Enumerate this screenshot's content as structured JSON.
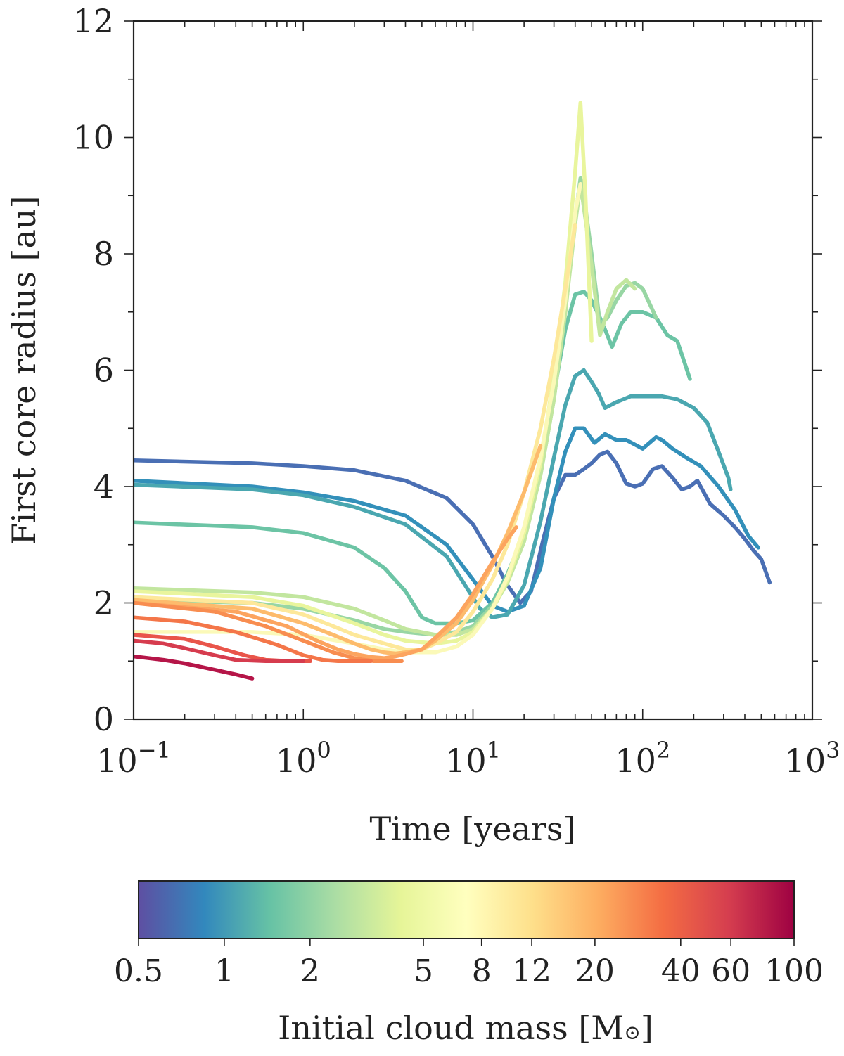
{
  "chart_data": {
    "type": "line",
    "title": "",
    "xlabel": "Time [years]",
    "ylabel": "First core radius [au]",
    "xscale": "log",
    "xlim": [
      0.1,
      1000
    ],
    "ylim": [
      0,
      12
    ],
    "x_ticks": [
      {
        "value": 0.1,
        "base": "10",
        "exp": "−1"
      },
      {
        "value": 1,
        "base": "10",
        "exp": "0"
      },
      {
        "value": 10,
        "base": "10",
        "exp": "1"
      },
      {
        "value": 100,
        "base": "10",
        "exp": "2"
      },
      {
        "value": 1000,
        "base": "10",
        "exp": "3"
      }
    ],
    "y_ticks": [
      {
        "value": 0,
        "label": "0"
      },
      {
        "value": 2,
        "label": "2"
      },
      {
        "value": 4,
        "label": "4"
      },
      {
        "value": 6,
        "label": "6"
      },
      {
        "value": 8,
        "label": "8"
      },
      {
        "value": 10,
        "label": "10"
      },
      {
        "value": 12,
        "label": "12"
      }
    ],
    "colorbar": {
      "label_text": "Initial cloud mass [M",
      "label_symbol": "⊙",
      "label_close": "]",
      "scale": "log",
      "range": [
        0.5,
        100
      ],
      "ticks": [
        {
          "value": 0.5,
          "label": "0.5"
        },
        {
          "value": 1,
          "label": "1"
        },
        {
          "value": 2,
          "label": "2"
        },
        {
          "value": 5,
          "label": "5"
        },
        {
          "value": 8,
          "label": "8"
        },
        {
          "value": 12,
          "label": "12"
        },
        {
          "value": 20,
          "label": "20"
        },
        {
          "value": 40,
          "label": "40"
        },
        {
          "value": 60,
          "label": "60"
        },
        {
          "value": 100,
          "label": "100"
        }
      ],
      "colormap": [
        "#5e4fa2",
        "#3288bd",
        "#66c2a5",
        "#abdda4",
        "#e6f598",
        "#ffffbf",
        "#fee08b",
        "#fdae61",
        "#f46d43",
        "#d53e4f",
        "#9e0142"
      ]
    },
    "series": [
      {
        "name": "0.5 Msun",
        "color": "#4a6fb4",
        "x": [
          0.1,
          0.5,
          1,
          2,
          4,
          7,
          10,
          13,
          16,
          19,
          22,
          26,
          30,
          35,
          40,
          45,
          50,
          56,
          62,
          70,
          80,
          90,
          100,
          115,
          130,
          150,
          170,
          190,
          210,
          250,
          300,
          350,
          400,
          450,
          500,
          560
        ],
        "y": [
          4.45,
          4.4,
          4.35,
          4.28,
          4.1,
          3.8,
          3.35,
          2.8,
          2.3,
          2.0,
          2.2,
          3.1,
          3.8,
          4.2,
          4.2,
          4.3,
          4.4,
          4.55,
          4.6,
          4.4,
          4.05,
          4.0,
          4.05,
          4.3,
          4.35,
          4.15,
          3.95,
          4.0,
          4.1,
          3.7,
          3.5,
          3.3,
          3.1,
          2.9,
          2.75,
          2.35
        ]
      },
      {
        "name": "1 Msun",
        "color": "#3390ba",
        "x": [
          0.1,
          0.5,
          1,
          2,
          4,
          7,
          10,
          13,
          16,
          20,
          25,
          30,
          35,
          40,
          45,
          52,
          60,
          70,
          80,
          100,
          120,
          130,
          150,
          180,
          220,
          280,
          350,
          420,
          480
        ],
        "y": [
          4.1,
          4.0,
          3.9,
          3.75,
          3.5,
          3.0,
          2.4,
          1.95,
          1.85,
          1.95,
          2.6,
          3.8,
          4.6,
          5.0,
          5.0,
          4.75,
          4.9,
          4.8,
          4.8,
          4.65,
          4.85,
          4.8,
          4.65,
          4.5,
          4.35,
          4.0,
          3.6,
          3.15,
          2.95
        ]
      },
      {
        "name": "1.2 Msun",
        "color": "#4aa7b0",
        "x": [
          0.1,
          0.5,
          1,
          2,
          4,
          7,
          9,
          11,
          13,
          16,
          20,
          25,
          30,
          35,
          40,
          45,
          50,
          55,
          60,
          70,
          85,
          100,
          130,
          160,
          200,
          240,
          280,
          320,
          330
        ],
        "y": [
          4.03,
          3.95,
          3.85,
          3.65,
          3.35,
          2.8,
          2.3,
          1.9,
          1.75,
          1.8,
          2.3,
          3.4,
          4.5,
          5.4,
          5.9,
          6.0,
          5.8,
          5.6,
          5.35,
          5.45,
          5.55,
          5.55,
          5.55,
          5.5,
          5.35,
          5.1,
          4.6,
          4.15,
          3.95
        ]
      },
      {
        "name": "2 Msun",
        "color": "#6cc4a5",
        "x": [
          0.1,
          0.5,
          1,
          2,
          3,
          4,
          5,
          6,
          8,
          10,
          13,
          16,
          20,
          25,
          30,
          35,
          40,
          45,
          50,
          56,
          60,
          66,
          75,
          85,
          100,
          120,
          140,
          160,
          190
        ],
        "y": [
          3.38,
          3.3,
          3.2,
          2.95,
          2.6,
          2.2,
          1.75,
          1.65,
          1.65,
          1.7,
          2.0,
          2.5,
          3.2,
          4.4,
          5.6,
          6.7,
          7.3,
          7.35,
          7.2,
          6.9,
          6.7,
          6.4,
          6.8,
          7.0,
          7.0,
          6.9,
          6.6,
          6.5,
          5.85
        ]
      },
      {
        "name": "3 Msun",
        "color": "#98d6a4",
        "x": [
          0.1,
          0.5,
          1,
          2,
          3,
          4,
          6,
          8,
          10,
          13,
          16,
          20,
          25,
          30,
          35,
          40,
          43,
          46,
          50,
          56,
          62,
          70,
          80,
          90,
          100,
          120
        ],
        "y": [
          2.05,
          2.0,
          1.9,
          1.7,
          1.55,
          1.5,
          1.45,
          1.5,
          1.6,
          1.95,
          2.4,
          3.1,
          4.2,
          5.5,
          7.0,
          8.6,
          9.3,
          8.8,
          8.0,
          6.8,
          6.9,
          7.2,
          7.45,
          7.5,
          7.4,
          6.9
        ]
      },
      {
        "name": "4 Msun",
        "color": "#c2e69f",
        "x": [
          0.1,
          0.5,
          1,
          2,
          3,
          4,
          6,
          8,
          10,
          13,
          16,
          20,
          25,
          30,
          35,
          40,
          43,
          46,
          50,
          56,
          62,
          70,
          80,
          90
        ],
        "y": [
          2.25,
          2.18,
          2.1,
          1.9,
          1.7,
          1.55,
          1.45,
          1.45,
          1.55,
          1.9,
          2.35,
          3.05,
          4.2,
          5.5,
          7.0,
          8.5,
          9.2,
          8.6,
          7.8,
          6.6,
          7.0,
          7.4,
          7.55,
          7.4
        ]
      },
      {
        "name": "6 Msun",
        "color": "#e9f59d",
        "x": [
          0.1,
          0.5,
          1,
          2,
          3,
          4,
          6,
          8,
          10,
          13,
          16,
          20,
          25,
          30,
          35,
          40,
          43,
          46,
          50
        ],
        "y": [
          2.2,
          2.1,
          1.95,
          1.65,
          1.45,
          1.35,
          1.3,
          1.35,
          1.5,
          1.9,
          2.4,
          3.2,
          4.4,
          5.9,
          7.5,
          9.4,
          10.6,
          9.0,
          6.5
        ]
      },
      {
        "name": "8 Msun",
        "color": "#fbf9b8",
        "x": [
          0.1,
          0.5,
          1,
          2,
          3,
          4,
          6,
          8,
          10,
          13,
          16,
          20,
          25,
          30,
          35,
          40,
          43
        ],
        "y": [
          1.5,
          1.5,
          1.45,
          1.3,
          1.2,
          1.15,
          1.15,
          1.25,
          1.45,
          1.9,
          2.45,
          3.3,
          4.5,
          5.8,
          7.2,
          8.7,
          9.2
        ]
      },
      {
        "name": "12 Msun",
        "color": "#fde89a",
        "x": [
          0.1,
          0.5,
          1,
          1.5,
          2,
          3,
          4,
          5,
          6,
          8,
          10,
          13,
          16,
          20,
          25,
          30,
          35,
          40
        ],
        "y": [
          2.1,
          2.0,
          1.8,
          1.6,
          1.45,
          1.3,
          1.2,
          1.2,
          1.3,
          1.5,
          1.85,
          2.4,
          3.0,
          3.9,
          5.0,
          6.2,
          7.4,
          8.5
        ]
      },
      {
        "name": "20 Msun",
        "color": "#fdbb6c",
        "x": [
          0.1,
          0.5,
          1,
          1.5,
          2,
          2.5,
          3,
          3.5,
          4,
          5,
          6,
          8,
          10,
          13,
          16,
          20,
          25
        ],
        "y": [
          2.05,
          1.9,
          1.65,
          1.45,
          1.3,
          1.2,
          1.15,
          1.13,
          1.15,
          1.2,
          1.35,
          1.65,
          2.05,
          2.65,
          3.2,
          3.9,
          4.7
        ]
      },
      {
        "name": "25 Msun",
        "color": "#fca45f",
        "x": [
          0.1,
          0.4,
          0.8,
          1.2,
          1.6,
          2,
          2.5,
          3,
          3.5,
          4,
          5,
          6,
          8,
          10,
          13,
          16,
          18
        ],
        "y": [
          2.0,
          1.85,
          1.6,
          1.35,
          1.2,
          1.12,
          1.07,
          1.05,
          1.08,
          1.12,
          1.2,
          1.4,
          1.75,
          2.15,
          2.7,
          3.1,
          3.3
        ]
      },
      {
        "name": "30 Msun",
        "color": "#f88d50",
        "x": [
          0.1,
          0.3,
          0.6,
          1,
          1.5,
          2,
          2.6,
          3,
          3.8
        ],
        "y": [
          2.0,
          1.85,
          1.6,
          1.35,
          1.15,
          1.05,
          1.0,
          1.0,
          1.0
        ]
      },
      {
        "name": "40 Msun",
        "color": "#f47649",
        "x": [
          0.1,
          0.2,
          0.4,
          0.7,
          1,
          1.3,
          1.6,
          2,
          2.5
        ],
        "y": [
          1.75,
          1.68,
          1.5,
          1.28,
          1.1,
          1.02,
          1.0,
          1.0,
          1.0
        ]
      },
      {
        "name": "60 Msun",
        "color": "#e9554a",
        "x": [
          0.1,
          0.2,
          0.3,
          0.45,
          0.6,
          0.8,
          1.1
        ],
        "y": [
          1.45,
          1.38,
          1.25,
          1.1,
          1.02,
          1.0,
          1.0
        ]
      },
      {
        "name": "80 Msun",
        "color": "#d63c4e",
        "x": [
          0.1,
          0.15,
          0.2,
          0.3,
          0.4,
          0.6,
          0.8,
          1.0
        ],
        "y": [
          1.35,
          1.3,
          1.22,
          1.1,
          1.02,
          1.0,
          1.0,
          1.0
        ]
      },
      {
        "name": "100 Msun",
        "color": "#b51548",
        "x": [
          0.1,
          0.15,
          0.2,
          0.3,
          0.4,
          0.5
        ],
        "y": [
          1.08,
          1.02,
          0.96,
          0.85,
          0.77,
          0.7
        ]
      }
    ]
  }
}
